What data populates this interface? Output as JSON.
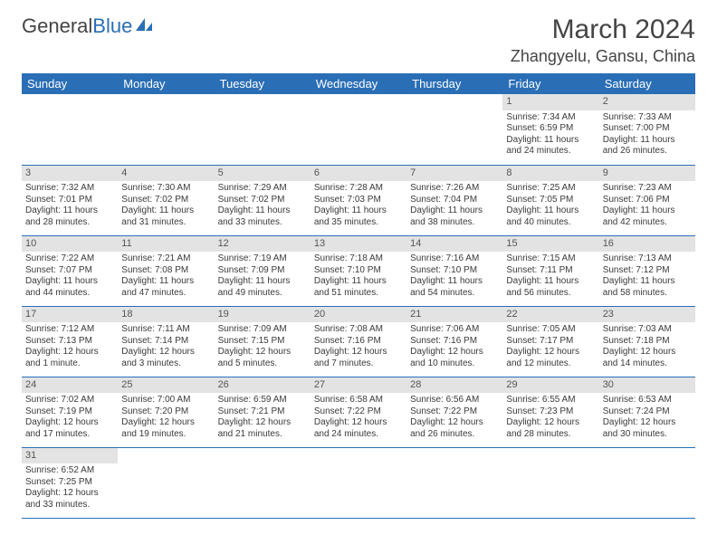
{
  "brand": {
    "part1": "General",
    "part2": "Blue"
  },
  "title": "March 2024",
  "location": "Zhangyelu, Gansu, China",
  "colors": {
    "header_bg": "#2a6eb6",
    "header_text": "#ffffff",
    "daynum_bg": "#e3e3e3",
    "row_border": "#2a6eb6",
    "body_text": "#3a3a3a",
    "title_text": "#444444"
  },
  "weekdays": [
    "Sunday",
    "Monday",
    "Tuesday",
    "Wednesday",
    "Thursday",
    "Friday",
    "Saturday"
  ],
  "weeks": [
    [
      null,
      null,
      null,
      null,
      null,
      {
        "n": "1",
        "sr": "Sunrise: 7:34 AM",
        "ss": "Sunset: 6:59 PM",
        "d1": "Daylight: 11 hours",
        "d2": "and 24 minutes."
      },
      {
        "n": "2",
        "sr": "Sunrise: 7:33 AM",
        "ss": "Sunset: 7:00 PM",
        "d1": "Daylight: 11 hours",
        "d2": "and 26 minutes."
      }
    ],
    [
      {
        "n": "3",
        "sr": "Sunrise: 7:32 AM",
        "ss": "Sunset: 7:01 PM",
        "d1": "Daylight: 11 hours",
        "d2": "and 28 minutes."
      },
      {
        "n": "4",
        "sr": "Sunrise: 7:30 AM",
        "ss": "Sunset: 7:02 PM",
        "d1": "Daylight: 11 hours",
        "d2": "and 31 minutes."
      },
      {
        "n": "5",
        "sr": "Sunrise: 7:29 AM",
        "ss": "Sunset: 7:02 PM",
        "d1": "Daylight: 11 hours",
        "d2": "and 33 minutes."
      },
      {
        "n": "6",
        "sr": "Sunrise: 7:28 AM",
        "ss": "Sunset: 7:03 PM",
        "d1": "Daylight: 11 hours",
        "d2": "and 35 minutes."
      },
      {
        "n": "7",
        "sr": "Sunrise: 7:26 AM",
        "ss": "Sunset: 7:04 PM",
        "d1": "Daylight: 11 hours",
        "d2": "and 38 minutes."
      },
      {
        "n": "8",
        "sr": "Sunrise: 7:25 AM",
        "ss": "Sunset: 7:05 PM",
        "d1": "Daylight: 11 hours",
        "d2": "and 40 minutes."
      },
      {
        "n": "9",
        "sr": "Sunrise: 7:23 AM",
        "ss": "Sunset: 7:06 PM",
        "d1": "Daylight: 11 hours",
        "d2": "and 42 minutes."
      }
    ],
    [
      {
        "n": "10",
        "sr": "Sunrise: 7:22 AM",
        "ss": "Sunset: 7:07 PM",
        "d1": "Daylight: 11 hours",
        "d2": "and 44 minutes."
      },
      {
        "n": "11",
        "sr": "Sunrise: 7:21 AM",
        "ss": "Sunset: 7:08 PM",
        "d1": "Daylight: 11 hours",
        "d2": "and 47 minutes."
      },
      {
        "n": "12",
        "sr": "Sunrise: 7:19 AM",
        "ss": "Sunset: 7:09 PM",
        "d1": "Daylight: 11 hours",
        "d2": "and 49 minutes."
      },
      {
        "n": "13",
        "sr": "Sunrise: 7:18 AM",
        "ss": "Sunset: 7:10 PM",
        "d1": "Daylight: 11 hours",
        "d2": "and 51 minutes."
      },
      {
        "n": "14",
        "sr": "Sunrise: 7:16 AM",
        "ss": "Sunset: 7:10 PM",
        "d1": "Daylight: 11 hours",
        "d2": "and 54 minutes."
      },
      {
        "n": "15",
        "sr": "Sunrise: 7:15 AM",
        "ss": "Sunset: 7:11 PM",
        "d1": "Daylight: 11 hours",
        "d2": "and 56 minutes."
      },
      {
        "n": "16",
        "sr": "Sunrise: 7:13 AM",
        "ss": "Sunset: 7:12 PM",
        "d1": "Daylight: 11 hours",
        "d2": "and 58 minutes."
      }
    ],
    [
      {
        "n": "17",
        "sr": "Sunrise: 7:12 AM",
        "ss": "Sunset: 7:13 PM",
        "d1": "Daylight: 12 hours",
        "d2": "and 1 minute."
      },
      {
        "n": "18",
        "sr": "Sunrise: 7:11 AM",
        "ss": "Sunset: 7:14 PM",
        "d1": "Daylight: 12 hours",
        "d2": "and 3 minutes."
      },
      {
        "n": "19",
        "sr": "Sunrise: 7:09 AM",
        "ss": "Sunset: 7:15 PM",
        "d1": "Daylight: 12 hours",
        "d2": "and 5 minutes."
      },
      {
        "n": "20",
        "sr": "Sunrise: 7:08 AM",
        "ss": "Sunset: 7:16 PM",
        "d1": "Daylight: 12 hours",
        "d2": "and 7 minutes."
      },
      {
        "n": "21",
        "sr": "Sunrise: 7:06 AM",
        "ss": "Sunset: 7:16 PM",
        "d1": "Daylight: 12 hours",
        "d2": "and 10 minutes."
      },
      {
        "n": "22",
        "sr": "Sunrise: 7:05 AM",
        "ss": "Sunset: 7:17 PM",
        "d1": "Daylight: 12 hours",
        "d2": "and 12 minutes."
      },
      {
        "n": "23",
        "sr": "Sunrise: 7:03 AM",
        "ss": "Sunset: 7:18 PM",
        "d1": "Daylight: 12 hours",
        "d2": "and 14 minutes."
      }
    ],
    [
      {
        "n": "24",
        "sr": "Sunrise: 7:02 AM",
        "ss": "Sunset: 7:19 PM",
        "d1": "Daylight: 12 hours",
        "d2": "and 17 minutes."
      },
      {
        "n": "25",
        "sr": "Sunrise: 7:00 AM",
        "ss": "Sunset: 7:20 PM",
        "d1": "Daylight: 12 hours",
        "d2": "and 19 minutes."
      },
      {
        "n": "26",
        "sr": "Sunrise: 6:59 AM",
        "ss": "Sunset: 7:21 PM",
        "d1": "Daylight: 12 hours",
        "d2": "and 21 minutes."
      },
      {
        "n": "27",
        "sr": "Sunrise: 6:58 AM",
        "ss": "Sunset: 7:22 PM",
        "d1": "Daylight: 12 hours",
        "d2": "and 24 minutes."
      },
      {
        "n": "28",
        "sr": "Sunrise: 6:56 AM",
        "ss": "Sunset: 7:22 PM",
        "d1": "Daylight: 12 hours",
        "d2": "and 26 minutes."
      },
      {
        "n": "29",
        "sr": "Sunrise: 6:55 AM",
        "ss": "Sunset: 7:23 PM",
        "d1": "Daylight: 12 hours",
        "d2": "and 28 minutes."
      },
      {
        "n": "30",
        "sr": "Sunrise: 6:53 AM",
        "ss": "Sunset: 7:24 PM",
        "d1": "Daylight: 12 hours",
        "d2": "and 30 minutes."
      }
    ],
    [
      {
        "n": "31",
        "sr": "Sunrise: 6:52 AM",
        "ss": "Sunset: 7:25 PM",
        "d1": "Daylight: 12 hours",
        "d2": "and 33 minutes."
      },
      null,
      null,
      null,
      null,
      null,
      null
    ]
  ]
}
